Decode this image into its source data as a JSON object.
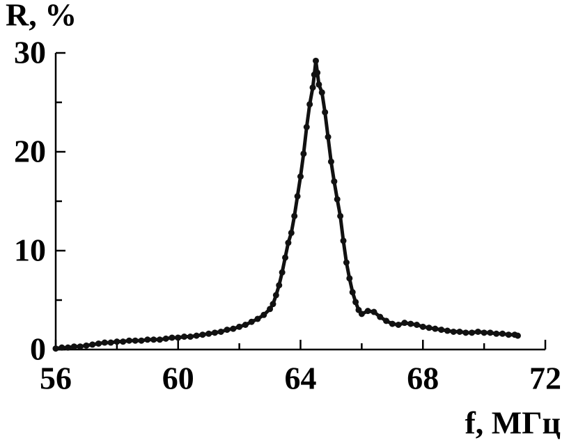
{
  "chart_data": {
    "type": "scatter",
    "x_label": "f, МГц",
    "y_label": "R, %",
    "color": "#111111",
    "xlim": [
      56,
      72
    ],
    "ylim": [
      0,
      30
    ],
    "xticks": [
      56,
      60,
      64,
      68,
      72
    ],
    "yticks": [
      0,
      10,
      20,
      30
    ],
    "xminorticks": [
      58,
      62,
      66,
      70
    ],
    "yminorticks": [
      5,
      15,
      25
    ],
    "x": [
      56.0,
      56.2,
      56.4,
      56.6,
      56.8,
      57.0,
      57.2,
      57.4,
      57.6,
      57.8,
      58.0,
      58.2,
      58.4,
      58.6,
      58.8,
      59.0,
      59.2,
      59.4,
      59.6,
      59.8,
      60.0,
      60.2,
      60.4,
      60.6,
      60.8,
      61.0,
      61.2,
      61.4,
      61.6,
      61.8,
      62.0,
      62.2,
      62.4,
      62.6,
      62.8,
      63.0,
      63.1,
      63.2,
      63.3,
      63.4,
      63.5,
      63.6,
      63.7,
      63.8,
      63.9,
      64.0,
      64.1,
      64.2,
      64.3,
      64.4,
      64.45,
      64.5,
      64.55,
      64.6,
      64.7,
      64.8,
      64.9,
      65.0,
      65.1,
      65.2,
      65.3,
      65.4,
      65.5,
      65.6,
      65.7,
      65.8,
      65.9,
      66.0,
      66.2,
      66.4,
      66.6,
      66.8,
      67.0,
      67.2,
      67.4,
      67.6,
      67.8,
      68.0,
      68.2,
      68.4,
      68.6,
      68.8,
      69.0,
      69.2,
      69.4,
      69.6,
      69.8,
      70.0,
      70.2,
      70.4,
      70.6,
      70.8,
      71.0,
      71.1
    ],
    "y": [
      0.1,
      0.2,
      0.2,
      0.3,
      0.3,
      0.4,
      0.5,
      0.6,
      0.7,
      0.7,
      0.8,
      0.8,
      0.9,
      0.9,
      0.9,
      1.0,
      1.0,
      1.0,
      1.1,
      1.2,
      1.2,
      1.3,
      1.3,
      1.4,
      1.5,
      1.6,
      1.7,
      1.8,
      2.0,
      2.1,
      2.3,
      2.5,
      2.8,
      3.1,
      3.5,
      4.1,
      4.6,
      5.5,
      6.5,
      7.8,
      9.3,
      10.8,
      11.8,
      13.5,
      15.5,
      17.5,
      19.8,
      22.5,
      24.8,
      26.5,
      27.8,
      29.2,
      28.0,
      26.8,
      26.0,
      24.0,
      21.5,
      19.0,
      17.0,
      15.2,
      13.5,
      11.0,
      8.8,
      7.2,
      5.8,
      4.8,
      4.0,
      3.6,
      3.9,
      3.8,
      3.3,
      2.9,
      2.6,
      2.5,
      2.7,
      2.6,
      2.5,
      2.3,
      2.2,
      2.1,
      2.0,
      1.9,
      1.8,
      1.8,
      1.7,
      1.7,
      1.8,
      1.7,
      1.7,
      1.6,
      1.6,
      1.5,
      1.5,
      1.4
    ]
  }
}
